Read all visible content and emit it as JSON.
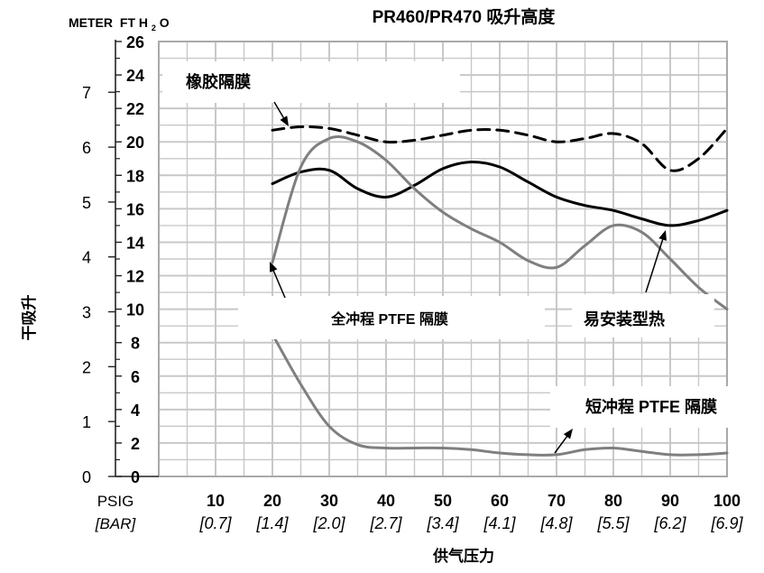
{
  "chart_data": {
    "type": "line",
    "title": "PR460/PR470 吸升高度",
    "ylabel_left_unit": "METER",
    "ylabel_ft_unit": "FT H",
    "ylabel_ft_sub": "2",
    "ylabel_ft_tail": "O",
    "ylabel_side": "干吸升",
    "xlabel": "供气压力",
    "x_unit_psig": "PSIG",
    "x_unit_bar": "[BAR]",
    "x": [
      10,
      20,
      30,
      40,
      50,
      60,
      70,
      80,
      90,
      100
    ],
    "x_ticks": [
      "10",
      "20",
      "30",
      "40",
      "50",
      "60",
      "70",
      "80",
      "90",
      "100"
    ],
    "x_bar_ticks": [
      "[0.7]",
      "[1.4]",
      "[2.0]",
      "[2.7]",
      "[3.4]",
      "[4.1]",
      "[4.8]",
      "[5.5]",
      "[6.2]",
      "[6.9]"
    ],
    "ft_ticks": [
      "0",
      "2",
      "4",
      "6",
      "8",
      "10",
      "12",
      "14",
      "16",
      "18",
      "20",
      "22",
      "24",
      "26"
    ],
    "meter_ticks": [
      "0",
      "1",
      "2",
      "3",
      "4",
      "5",
      "6",
      "7"
    ],
    "ylim_ft": [
      0,
      26
    ],
    "xlim": [
      0,
      100
    ],
    "grid": true,
    "series": [
      {
        "name": "橡胶隔膜",
        "style": "dashed",
        "color": "#000000",
        "x": [
          20,
          25,
          30,
          35,
          40,
          45,
          50,
          55,
          60,
          65,
          70,
          75,
          80,
          85,
          90,
          95,
          100
        ],
        "y": [
          20.7,
          20.9,
          20.8,
          20.4,
          20.0,
          20.1,
          20.4,
          20.7,
          20.7,
          20.4,
          20.0,
          20.2,
          20.5,
          19.9,
          18.3,
          19.0,
          20.8
        ]
      },
      {
        "name": "易安装型热",
        "style": "solid",
        "color": "#000000",
        "x": [
          20,
          25,
          30,
          35,
          40,
          45,
          50,
          55,
          60,
          65,
          70,
          75,
          80,
          85,
          90,
          95,
          100
        ],
        "y": [
          17.5,
          18.2,
          18.3,
          17.2,
          16.7,
          17.4,
          18.4,
          18.8,
          18.5,
          17.6,
          16.7,
          16.2,
          15.9,
          15.4,
          15.0,
          15.3,
          15.9
        ]
      },
      {
        "name": "全冲程 PTFE 隔膜",
        "style": "solid",
        "color": "#7f7f7f",
        "x": [
          20,
          25,
          30,
          35,
          40,
          45,
          50,
          55,
          60,
          65,
          70,
          75,
          80,
          85,
          90,
          95,
          100
        ],
        "y": [
          12.8,
          18.5,
          20.2,
          20.0,
          18.9,
          17.2,
          15.8,
          14.8,
          14.0,
          12.9,
          12.5,
          13.8,
          15.0,
          14.6,
          13.0,
          11.3,
          10.0
        ]
      },
      {
        "name": "短冲程 PTFE 隔膜",
        "style": "solid",
        "color": "#7f7f7f",
        "x": [
          20,
          25,
          30,
          35,
          40,
          45,
          50,
          55,
          60,
          65,
          70,
          75,
          80,
          85,
          90,
          95,
          100
        ],
        "y": [
          8.5,
          5.5,
          3.0,
          1.9,
          1.7,
          1.7,
          1.7,
          1.6,
          1.4,
          1.3,
          1.3,
          1.6,
          1.7,
          1.5,
          1.3,
          1.3,
          1.4
        ]
      }
    ],
    "annotations": [
      {
        "text": "橡胶隔膜",
        "series": 0
      },
      {
        "text": "全冲程 PTFE 隔膜",
        "series": 2
      },
      {
        "text": "易安装型热",
        "series": 1
      },
      {
        "text": "短冲程 PTFE 隔膜",
        "series": 3
      }
    ]
  }
}
